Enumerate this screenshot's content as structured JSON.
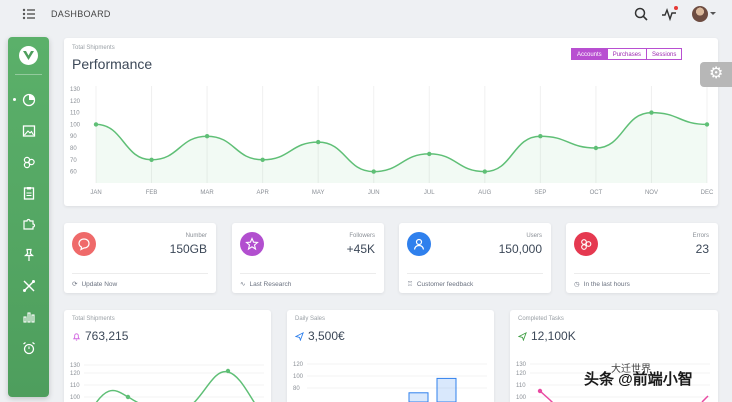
{
  "header": {
    "title": "DASHBOARD"
  },
  "performance": {
    "subtitle": "Total Shipments",
    "title": "Performance",
    "tabs": [
      "Accounts",
      "Purchases",
      "Sessions"
    ],
    "active_tab": "Accounts"
  },
  "stats": [
    {
      "label": "Number",
      "value": "150GB",
      "footer": "Update Now",
      "icon": "chat-bubble-icon",
      "color": "#ef5350"
    },
    {
      "label": "Followers",
      "value": "+45K",
      "footer": "Last Research",
      "icon": "star-icon",
      "color": "#ab47bc"
    },
    {
      "label": "Users",
      "value": "150,000",
      "footer": "Customer feedback",
      "icon": "user-icon",
      "color": "#2f80ed"
    },
    {
      "label": "Errors",
      "value": "23",
      "footer": "In the last hours",
      "icon": "bug-icon",
      "color": "#e53950"
    }
  ],
  "mini_cards": [
    {
      "subtitle": "Total Shipments",
      "value": "763,215",
      "icon": "bell-icon",
      "icon_color": "#d064e0"
    },
    {
      "subtitle": "Daily Sales",
      "value": "3,500€",
      "icon": "send-icon",
      "icon_color": "#2f80ed"
    },
    {
      "subtitle": "Completed Tasks",
      "value": "12,100K",
      "icon": "send-icon",
      "icon_color": "#43a047"
    }
  ],
  "chart_data": [
    {
      "type": "line",
      "title": "Performance",
      "subtitle": "Total Shipments",
      "categories": [
        "JAN",
        "FEB",
        "MAR",
        "APR",
        "MAY",
        "JUN",
        "JUL",
        "AUG",
        "SEP",
        "OCT",
        "NOV",
        "DEC"
      ],
      "values": [
        100,
        70,
        90,
        70,
        85,
        60,
        75,
        60,
        90,
        80,
        110,
        100
      ],
      "yticks": [
        60,
        70,
        80,
        90,
        100,
        110,
        120,
        130
      ],
      "ylim": [
        55,
        130
      ],
      "color": "#5fbf76",
      "grid": true
    },
    {
      "type": "line",
      "title": "763,215",
      "subtitle": "Total Shipments",
      "yticks": [
        100,
        110,
        120
      ],
      "values_visible": [
        100,
        120
      ],
      "color": "#5fbf76"
    },
    {
      "type": "bar",
      "title": "3,500€",
      "subtitle": "Daily Sales",
      "yticks": [
        80,
        100,
        120
      ],
      "values_visible": [
        80,
        100
      ],
      "color": "#2f80ed"
    },
    {
      "type": "line",
      "title": "12,100K",
      "subtitle": "Completed Tasks",
      "yticks": [
        100,
        110,
        120
      ],
      "color": "#e94aa2"
    }
  ],
  "watermark": {
    "line1": "大迁世界",
    "line2": "头条 @前端小智"
  }
}
